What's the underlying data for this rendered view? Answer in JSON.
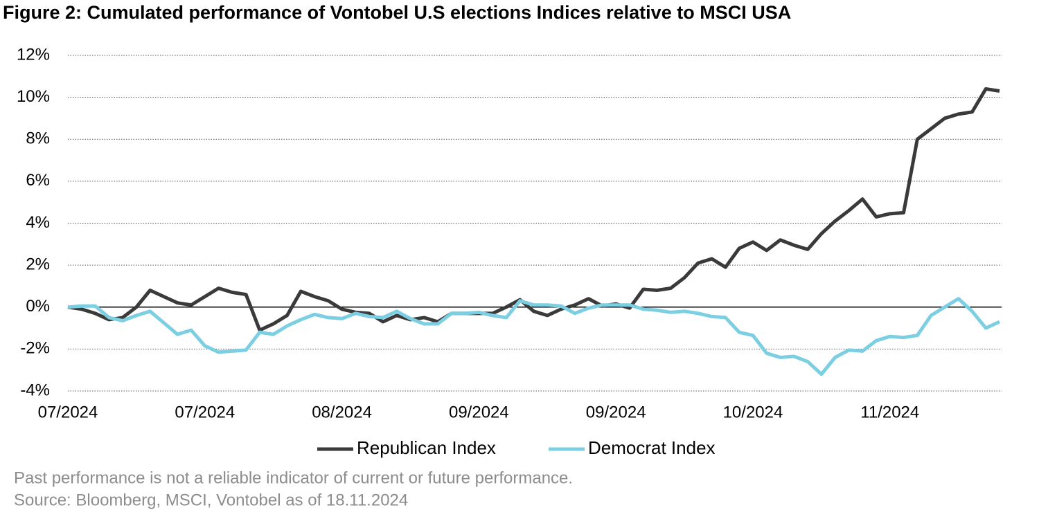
{
  "chart_data": {
    "type": "line",
    "title": "Figure 2: Cumulated performance of Vontobel U.S elections Indices relative to MSCI USA",
    "categories": [
      "07/2024",
      null,
      null,
      null,
      null,
      null,
      null,
      null,
      null,
      null,
      "07/2024",
      null,
      null,
      null,
      null,
      null,
      null,
      null,
      null,
      null,
      "08/2024",
      null,
      null,
      null,
      null,
      null,
      null,
      null,
      null,
      null,
      "09/2024",
      null,
      null,
      null,
      null,
      null,
      null,
      null,
      null,
      null,
      "09/2024",
      null,
      null,
      null,
      null,
      null,
      null,
      null,
      null,
      null,
      "10/2024",
      null,
      null,
      null,
      null,
      null,
      null,
      null,
      null,
      null,
      "11/2024",
      null,
      null,
      null,
      null,
      null,
      null,
      null,
      null
    ],
    "series": [
      {
        "name": "Republican Index",
        "color": "#3a3a3a",
        "values": [
          0,
          -0.1,
          -0.3,
          -0.6,
          -0.5,
          0.0,
          0.8,
          0.5,
          0.2,
          0.1,
          0.5,
          0.9,
          0.7,
          0.6,
          -1.1,
          -0.8,
          -0.4,
          0.75,
          0.5,
          0.3,
          -0.1,
          -0.25,
          -0.3,
          -0.7,
          -0.4,
          -0.6,
          -0.5,
          -0.7,
          -0.3,
          -0.3,
          -0.3,
          -0.3,
          0.0,
          0.35,
          -0.2,
          -0.4,
          -0.1,
          0.1,
          0.4,
          0.05,
          0.15,
          -0.05,
          0.85,
          0.8,
          0.9,
          1.4,
          2.1,
          2.3,
          1.9,
          2.8,
          3.1,
          2.7,
          3.2,
          2.95,
          2.75,
          3.5,
          4.1,
          4.6,
          5.15,
          4.3,
          4.45,
          4.5,
          8.0,
          8.5,
          9.0,
          9.2,
          9.3,
          10.4,
          10.3
        ]
      },
      {
        "name": "Democrat Index",
        "color": "#7ccfe2",
        "values": [
          0,
          0.05,
          0.05,
          -0.5,
          -0.65,
          -0.4,
          -0.2,
          -0.75,
          -1.3,
          -1.1,
          -1.85,
          -2.15,
          -2.1,
          -2.05,
          -1.2,
          -1.3,
          -0.9,
          -0.6,
          -0.35,
          -0.5,
          -0.55,
          -0.3,
          -0.45,
          -0.5,
          -0.2,
          -0.55,
          -0.8,
          -0.8,
          -0.3,
          -0.3,
          -0.25,
          -0.4,
          -0.5,
          0.3,
          0.1,
          0.1,
          0.05,
          -0.3,
          -0.05,
          0.1,
          0.1,
          0.1,
          -0.1,
          -0.15,
          -0.25,
          -0.2,
          -0.3,
          -0.45,
          -0.5,
          -1.2,
          -1.35,
          -2.2,
          -2.4,
          -2.35,
          -2.6,
          -3.2,
          -2.4,
          -2.05,
          -2.1,
          -1.6,
          -1.4,
          -1.45,
          -1.35,
          -0.4,
          0.0,
          0.4,
          -0.2,
          -1.0,
          -0.7
        ]
      }
    ],
    "ylim": [
      -4,
      12
    ],
    "yticks": [
      {
        "value": -4,
        "label": "-4%"
      },
      {
        "value": -2,
        "label": "-2%"
      },
      {
        "value": 0,
        "label": "0%"
      },
      {
        "value": 2,
        "label": "2%"
      },
      {
        "value": 4,
        "label": "4%"
      },
      {
        "value": 6,
        "label": "6%"
      },
      {
        "value": 8,
        "label": "8%"
      },
      {
        "value": 10,
        "label": "10%"
      },
      {
        "value": 12,
        "label": "12%"
      }
    ],
    "grid": true,
    "legend": "bottom",
    "notes": [
      "Past performance is not a reliable indicator of current or future performance.",
      "Source: Bloomberg, MSCI, Vontobel as of 18.11.2024"
    ]
  }
}
